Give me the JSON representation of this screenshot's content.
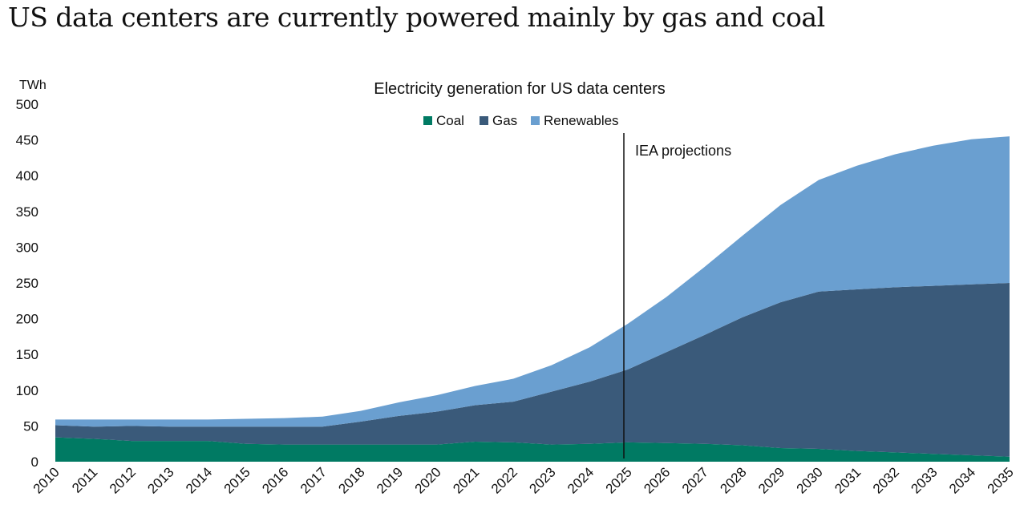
{
  "headline": "US data centers are currently powered mainly by gas and coal",
  "chart_data": {
    "type": "area",
    "stacked": true,
    "title": "Electricity generation for US data centers",
    "ylabel": "TWh",
    "xlabel": "",
    "ylim": [
      0,
      500
    ],
    "y_ticks": [
      0,
      50,
      100,
      150,
      200,
      250,
      300,
      350,
      400,
      450,
      500
    ],
    "x": [
      "2010",
      "2011",
      "2012",
      "2013",
      "2014",
      "2015",
      "2016",
      "2017",
      "2018",
      "2019",
      "2020",
      "2021",
      "2022",
      "2023",
      "2024",
      "2025",
      "2026",
      "2027",
      "2028",
      "2029",
      "2030",
      "2031",
      "2032",
      "2033",
      "2034",
      "2035"
    ],
    "series": [
      {
        "name": "Coal",
        "color": "#007a63",
        "values": [
          34,
          32,
          29,
          29,
          29,
          25,
          24,
          24,
          24,
          24,
          24,
          28,
          27,
          24,
          25,
          27,
          26,
          25,
          23,
          19,
          18,
          15,
          13,
          11,
          9,
          7
        ]
      },
      {
        "name": "Gas",
        "color": "#3a5a7a",
        "values": [
          17,
          17,
          21,
          20,
          20,
          24,
          25,
          25,
          32,
          40,
          46,
          51,
          57,
          74,
          87,
          102,
          127,
          152,
          179,
          204,
          220,
          226,
          231,
          235,
          239,
          243
        ]
      },
      {
        "name": "Renewables",
        "color": "#6a9fd0",
        "values": [
          8,
          10,
          9,
          10,
          10,
          11,
          12,
          14,
          15,
          19,
          23,
          27,
          32,
          37,
          48,
          64,
          77,
          95,
          114,
          136,
          156,
          173,
          186,
          196,
          203,
          205
        ]
      }
    ],
    "legend_position": "top-center",
    "annotations": [
      {
        "text": "IEA projections",
        "x": "2025",
        "type": "vertical-line"
      }
    ]
  }
}
